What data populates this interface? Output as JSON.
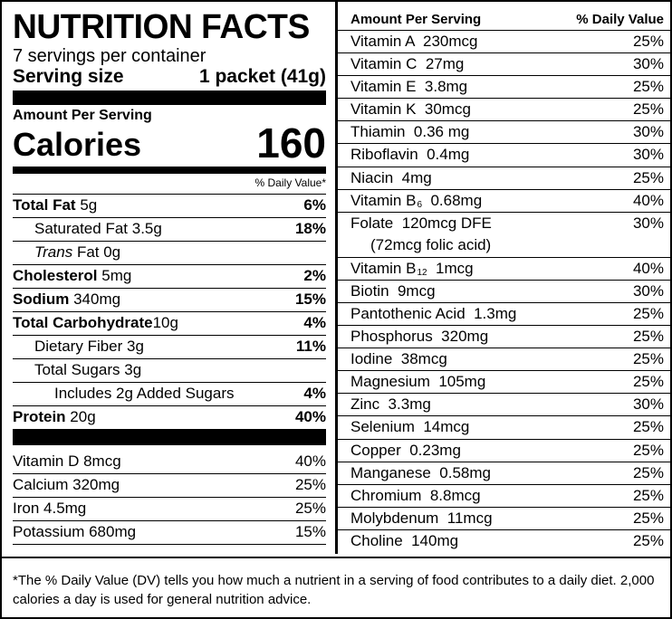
{
  "title": "NUTRITION FACTS",
  "servings_per_container": "7 servings per container",
  "serving_size_label": "Serving size",
  "serving_size_value": "1 packet (41g)",
  "amount_per_serving": "Amount Per Serving",
  "calories_label": "Calories",
  "calories_value": "160",
  "daily_value_header": "% Daily Value*",
  "nutrients": [
    {
      "name": "Total Fat",
      "amount": "5g",
      "pct": "6%"
    },
    {
      "name": "Saturated Fat",
      "amount": "3.5g",
      "pct": "18%"
    },
    {
      "name": "Trans",
      "amount": "Fat 0g",
      "pct": ""
    },
    {
      "name": "Cholesterol",
      "amount": "5mg",
      "pct": "2%"
    },
    {
      "name": "Sodium",
      "amount": "340mg",
      "pct": "15%"
    },
    {
      "name": "Total Carbohydrate",
      "amount": "10g",
      "pct": "4%"
    },
    {
      "name": "Dietary Fiber",
      "amount": "3g",
      "pct": "11%"
    },
    {
      "name": "Total Sugars",
      "amount": "3g",
      "pct": ""
    },
    {
      "name": "Includes 2g Added Sugars",
      "amount": "",
      "pct": "4%"
    },
    {
      "name": "Protein",
      "amount": "20g",
      "pct": "40%"
    }
  ],
  "left_vitamins": [
    {
      "text": "Vitamin D 8mcg",
      "pct": "40%"
    },
    {
      "text": "Calcium 320mg",
      "pct": "25%"
    },
    {
      "text": "Iron 4.5mg",
      "pct": "25%"
    },
    {
      "text": "Potassium 680mg",
      "pct": "15%"
    }
  ],
  "right_header": {
    "left": "Amount Per Serving",
    "right": "% Daily Value"
  },
  "right_vitamins": [
    {
      "text": "Vitamin A  230mcg",
      "pct": "25%"
    },
    {
      "text": "Vitamin C  27mg",
      "pct": "30%"
    },
    {
      "text": "Vitamin E  3.8mg",
      "pct": "25%"
    },
    {
      "text": "Vitamin K  30mcg",
      "pct": "25%"
    },
    {
      "text": "Thiamin  0.36 mg",
      "pct": "30%"
    },
    {
      "text": "Riboflavin  0.4mg",
      "pct": "30%"
    },
    {
      "text": "Niacin  4mg",
      "pct": "25%"
    },
    {
      "text": "Vitamin B",
      "sub": "6",
      "after": "  0.68mg",
      "pct": "40%"
    },
    {
      "text": "Folate  120mcg DFE",
      "text2": "(72mcg folic acid)",
      "pct": "30%"
    },
    {
      "text": "Vitamin B",
      "sub": "12",
      "after": "  1mcg",
      "pct": "40%"
    },
    {
      "text": "Biotin  9mcg",
      "pct": "30%"
    },
    {
      "text": "Pantothenic Acid  1.3mg",
      "pct": "25%"
    },
    {
      "text": "Phosphorus  320mg",
      "pct": "25%"
    },
    {
      "text": "Iodine  38mcg",
      "pct": "25%"
    },
    {
      "text": "Magnesium  105mg",
      "pct": "25%"
    },
    {
      "text": "Zinc  3.3mg",
      "pct": "30%"
    },
    {
      "text": "Selenium  14mcg",
      "pct": "25%"
    },
    {
      "text": "Copper  0.23mg",
      "pct": "25%"
    },
    {
      "text": "Manganese  0.58mg",
      "pct": "25%"
    },
    {
      "text": "Chromium  8.8mcg",
      "pct": "25%"
    },
    {
      "text": "Molybdenum  11mcg",
      "pct": "25%"
    },
    {
      "text": "Choline  140mg",
      "pct": "25%"
    }
  ],
  "footnote": "*The % Daily Value (DV) tells you how much a nutrient in a serving of food contributes to a daily diet. 2,000 calories a day is used for general nutrition advice."
}
